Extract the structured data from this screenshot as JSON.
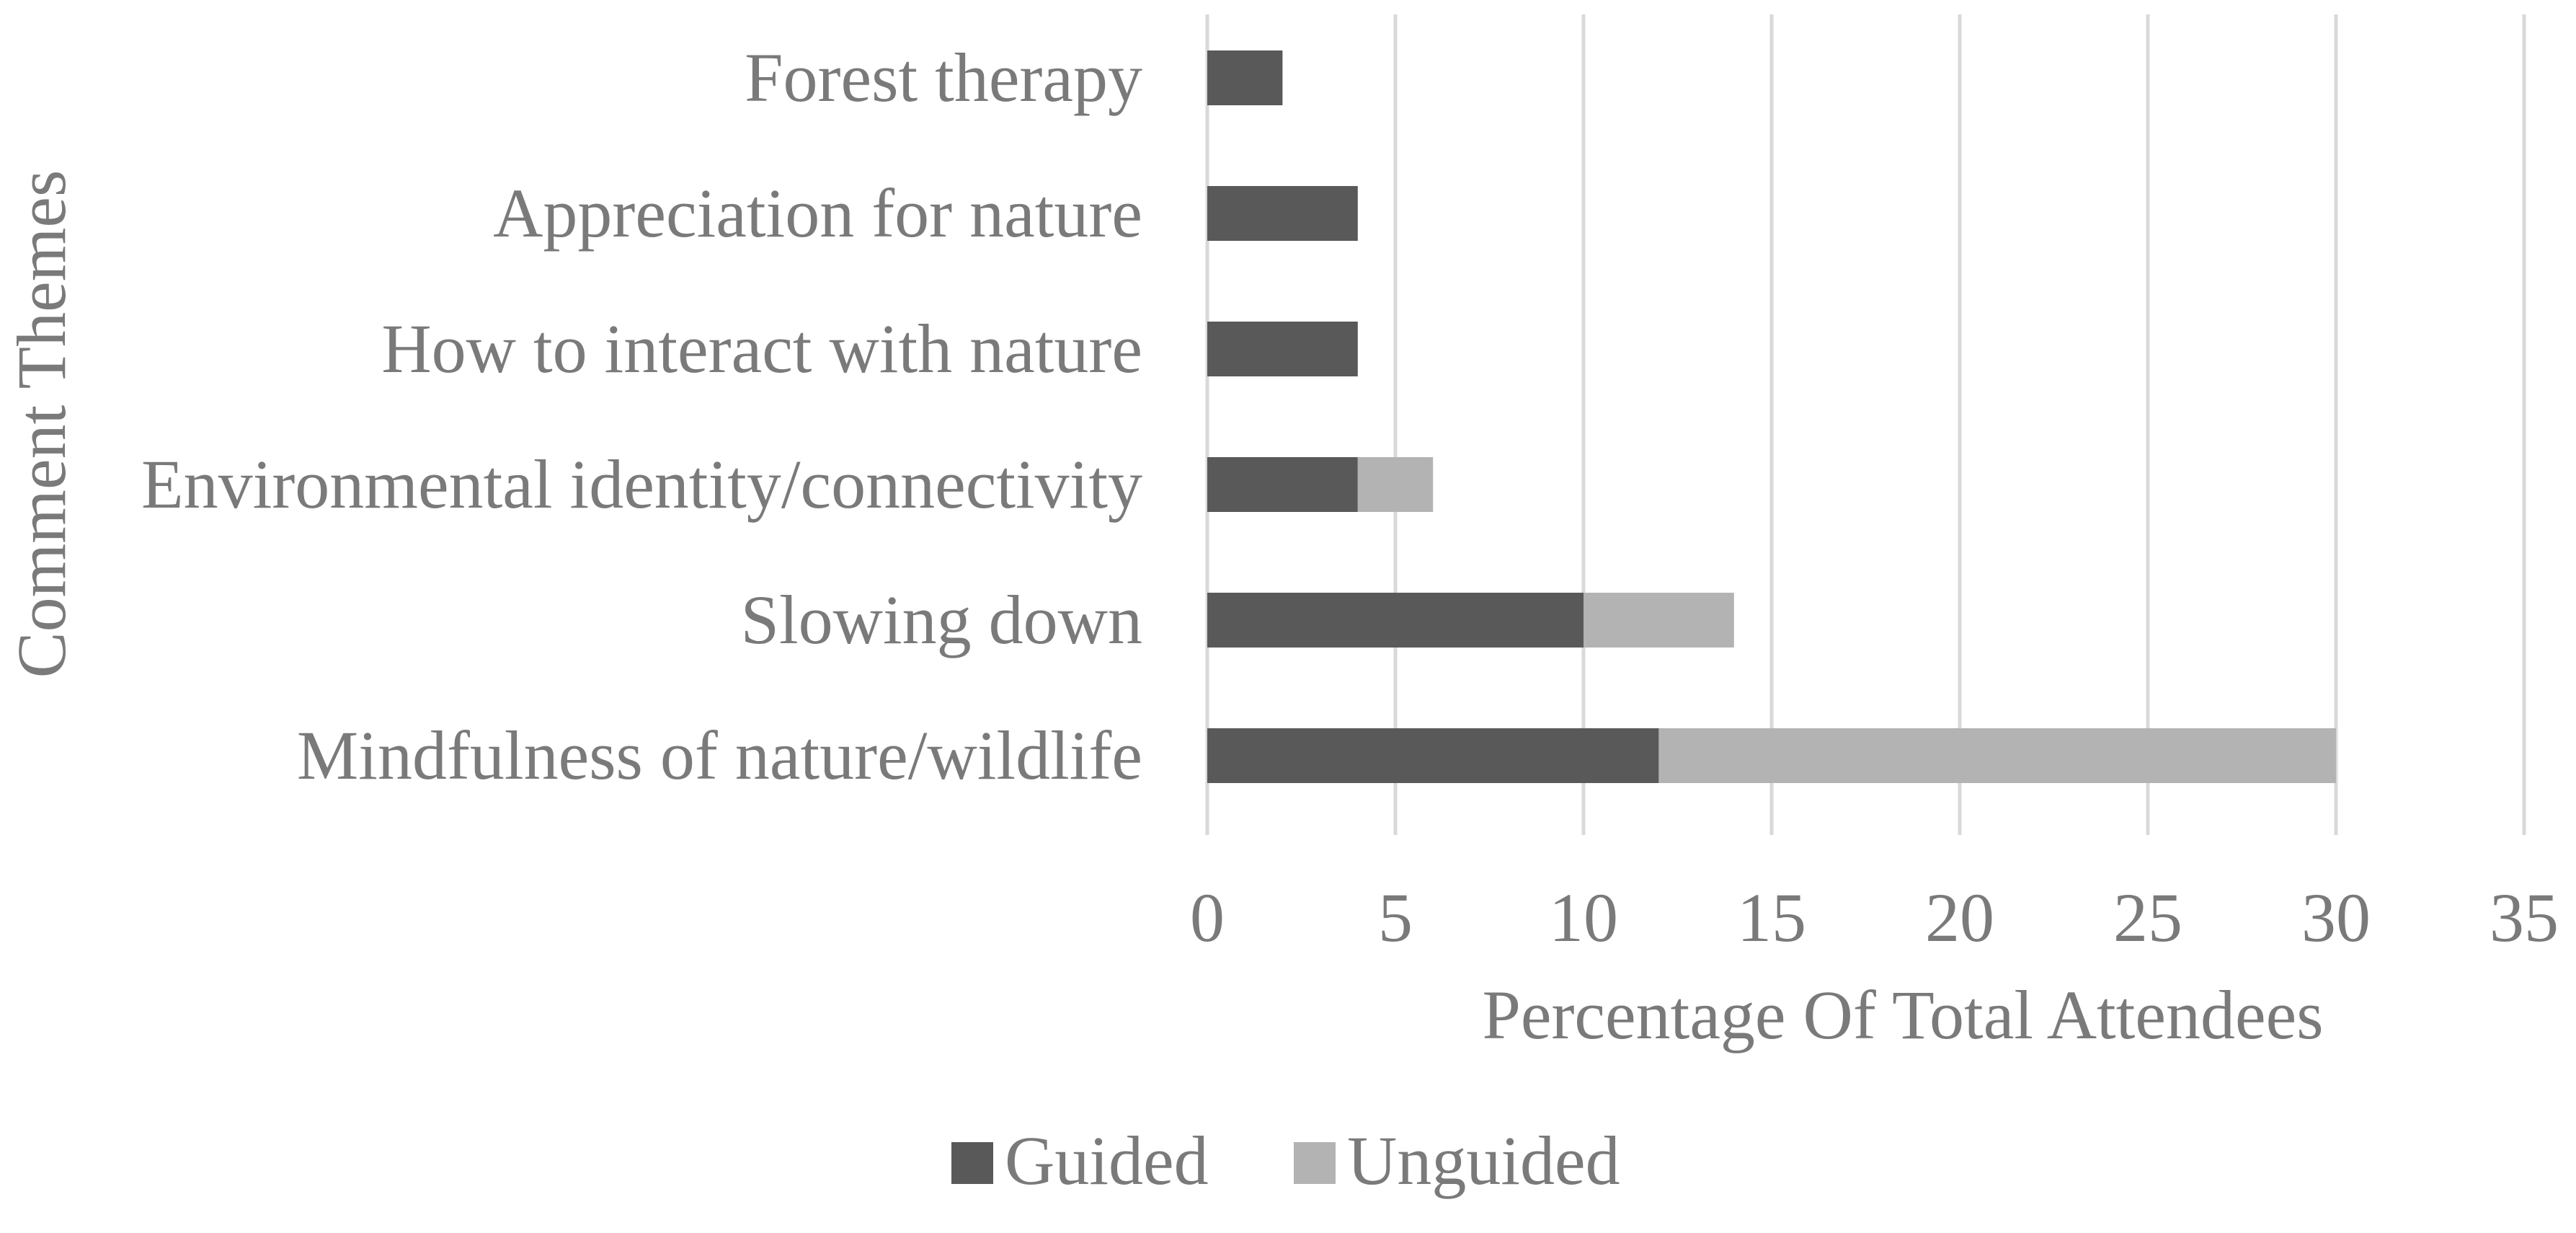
{
  "chart_data": {
    "type": "bar",
    "orientation": "horizontal",
    "stacked": true,
    "categories": [
      "Forest therapy",
      "Appreciation for nature",
      "How to interact with nature",
      "Environmental identity/connectivity",
      "Slowing down",
      "Mindfulness of nature/wildlife"
    ],
    "series": [
      {
        "name": "Guided",
        "values": [
          2,
          4,
          4,
          4,
          10,
          12
        ],
        "color": "#595959"
      },
      {
        "name": "Unguided",
        "values": [
          0,
          0,
          0,
          2,
          4,
          18
        ],
        "color": "#b3b3b3"
      }
    ],
    "xlabel": "Percentage Of Total Attendees",
    "ylabel": "Comment Themes",
    "xlim": [
      0,
      35
    ],
    "xticks": [
      0,
      5,
      10,
      15,
      20,
      25,
      30,
      35
    ],
    "grid": "vertical",
    "legend": "bottom"
  }
}
